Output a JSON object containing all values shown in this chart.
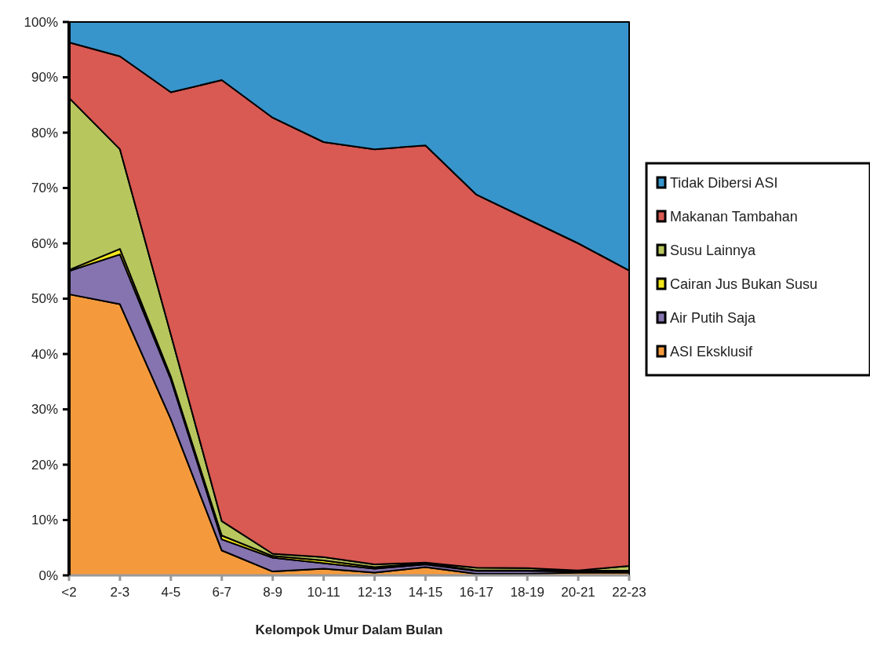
{
  "chart_data": {
    "type": "area",
    "stacked": true,
    "xlabel": "Kelompok Umur Dalam Bulan",
    "categories": [
      "<2",
      "2-3",
      "4-5",
      "6-7",
      "8-9",
      "10-11",
      "12-13",
      "14-15",
      "16-17",
      "18-19",
      "20-21",
      "22-23"
    ],
    "ylim": [
      0,
      100
    ],
    "yticks": [
      {
        "value": 0,
        "label": "0%"
      },
      {
        "value": 10,
        "label": "10%"
      },
      {
        "value": 20,
        "label": "20%"
      },
      {
        "value": 30,
        "label": "30%"
      },
      {
        "value": 40,
        "label": "40%"
      },
      {
        "value": 50,
        "label": "50%"
      },
      {
        "value": 60,
        "label": "60%"
      },
      {
        "value": 70,
        "label": "70%"
      },
      {
        "value": 80,
        "label": "80%"
      },
      {
        "value": 90,
        "label": "90%"
      },
      {
        "value": 100,
        "label": "100%"
      }
    ],
    "legend": "right",
    "series": [
      {
        "name": "ASI Eksklusif",
        "color": "#f59a3c",
        "values": [
          50.8,
          49,
          28.2,
          4.5,
          0.7,
          1.2,
          0.5,
          1.5,
          0.3,
          0.3,
          0.5,
          0.5
        ]
      },
      {
        "name": "Air Putih Saja",
        "color": "#8674b0",
        "values": [
          4.2,
          9,
          7.2,
          2,
          2.5,
          1,
          0.7,
          0.5,
          0.5,
          0.5,
          0.2,
          0.3
        ]
      },
      {
        "name": "Cairan Jus Bukan Susu",
        "color": "#f2e61c",
        "values": [
          0.2,
          1,
          0.5,
          0.7,
          0.3,
          0.5,
          0.3,
          0.2,
          0.1,
          0.1,
          0.1,
          0.1
        ]
      },
      {
        "name": "Susu Lainnya",
        "color": "#b8c65e",
        "values": [
          31.1,
          18,
          7.6,
          2.6,
          0.4,
          0.6,
          0.5,
          0.1,
          0.5,
          0.4,
          0.1,
          0.8
        ]
      },
      {
        "name": "Makanan Tambahan",
        "color": "#d95953",
        "values": [
          10,
          16.8,
          43.8,
          79.7,
          78.8,
          75,
          75,
          75.4,
          67.4,
          63.1,
          59.1,
          53.4
        ]
      },
      {
        "name": "Tidak Dibersi ASI",
        "color": "#3895cc",
        "values": [
          3.7,
          6.2,
          12.7,
          10.5,
          17.3,
          21.7,
          23,
          22.3,
          31.2,
          35.6,
          40,
          44.9
        ]
      }
    ]
  }
}
